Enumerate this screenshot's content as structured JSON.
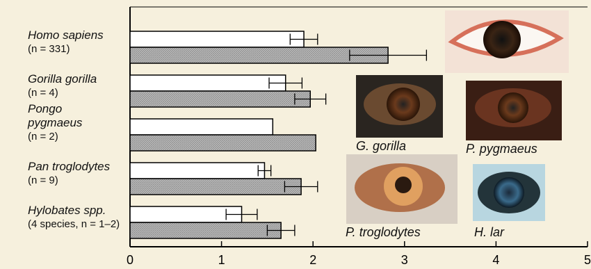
{
  "chart_data": {
    "type": "bar",
    "orientation": "horizontal",
    "categories": [
      "Homo sapiens",
      "Gorilla gorilla",
      "Pongo pygmaeus",
      "Pan troglodytes",
      "Hylobates spp."
    ],
    "sample_sizes": [
      "(n = 331)",
      "(n = 4)",
      "(n = 2)",
      "(n = 9)",
      "(4 species, n = 1–2)"
    ],
    "series": [
      {
        "color": "#ffffff",
        "values": [
          1.9,
          1.7,
          1.56,
          1.47,
          1.22
        ],
        "errors": [
          0.15,
          0.18,
          null,
          0.07,
          0.17
        ]
      },
      {
        "color": "#b0b0b0",
        "values": [
          2.82,
          1.97,
          2.03,
          1.87,
          1.65
        ],
        "errors": [
          0.42,
          0.17,
          null,
          0.18,
          0.15
        ]
      }
    ],
    "xlim": [
      0,
      5
    ],
    "xticks": [
      0,
      1,
      2,
      3,
      4,
      5
    ],
    "photo_captions": [
      "G. gorilla",
      "P. pygmaeus",
      "P. troglodytes",
      "H. lar"
    ]
  }
}
